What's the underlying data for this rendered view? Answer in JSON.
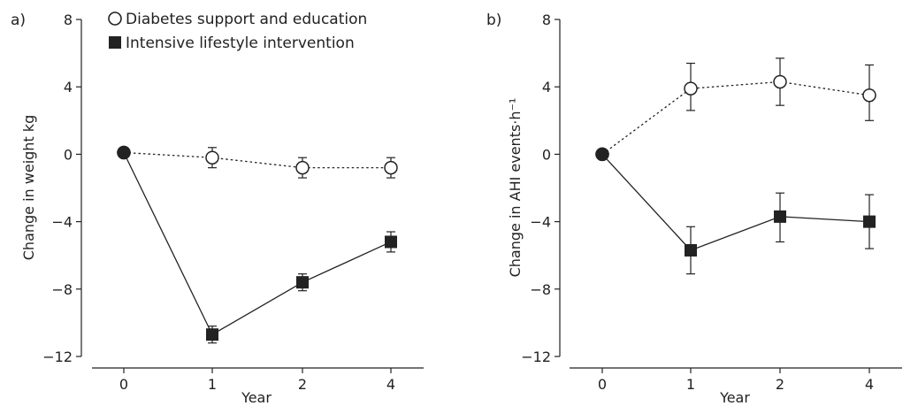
{
  "chart_data": [
    {
      "panel_label": "a)",
      "type": "line",
      "xlabel": "Year",
      "ylabel": "Change in weight kg",
      "ylim": [
        -12,
        8
      ],
      "yticks": [
        "8",
        "4",
        "0",
        "-4",
        "-8",
        "-12"
      ],
      "categories": [
        "0",
        "1",
        "2",
        "4"
      ],
      "grid": false,
      "legend": "top-left",
      "series": [
        {
          "name": "Diabetes support and education",
          "marker": "open-circle",
          "line": "dotted",
          "values": [
            0.1,
            -0.2,
            -0.8,
            -0.8
          ],
          "err_lo": [
            0.1,
            -0.8,
            -1.4,
            -1.4
          ],
          "err_hi": [
            0.1,
            0.4,
            -0.2,
            -0.2
          ]
        },
        {
          "name": "Intensive lifestyle intervention",
          "marker": "filled-square",
          "line": "solid",
          "values": [
            0.1,
            -10.7,
            -7.6,
            -5.2
          ],
          "err_lo": [
            0.1,
            -11.2,
            -8.1,
            -5.8
          ],
          "err_hi": [
            0.1,
            -10.2,
            -7.1,
            -4.6
          ]
        }
      ]
    },
    {
      "panel_label": "b)",
      "type": "line",
      "xlabel": "Year",
      "ylabel": "Change in AHI events·h⁻¹",
      "ylim": [
        -12,
        8
      ],
      "yticks": [
        "8",
        "4",
        "0",
        "-4",
        "-8",
        "-12"
      ],
      "categories": [
        "0",
        "1",
        "2",
        "4"
      ],
      "grid": false,
      "series": [
        {
          "name": "Diabetes support and education",
          "marker": "open-circle",
          "line": "dotted",
          "values": [
            0,
            3.9,
            4.3,
            3.5
          ],
          "err_lo": [
            0,
            2.6,
            2.9,
            2.0
          ],
          "err_hi": [
            0,
            5.4,
            5.7,
            5.3
          ]
        },
        {
          "name": "Intensive lifestyle intervention",
          "marker": "filled-square",
          "line": "solid",
          "values": [
            0,
            -5.7,
            -3.7,
            -4.0
          ],
          "err_lo": [
            0,
            -7.1,
            -5.2,
            -5.6
          ],
          "err_hi": [
            0,
            -4.3,
            -2.3,
            -2.4
          ]
        }
      ]
    }
  ],
  "colors": {
    "ink": "#222222",
    "background": "#ffffff"
  }
}
